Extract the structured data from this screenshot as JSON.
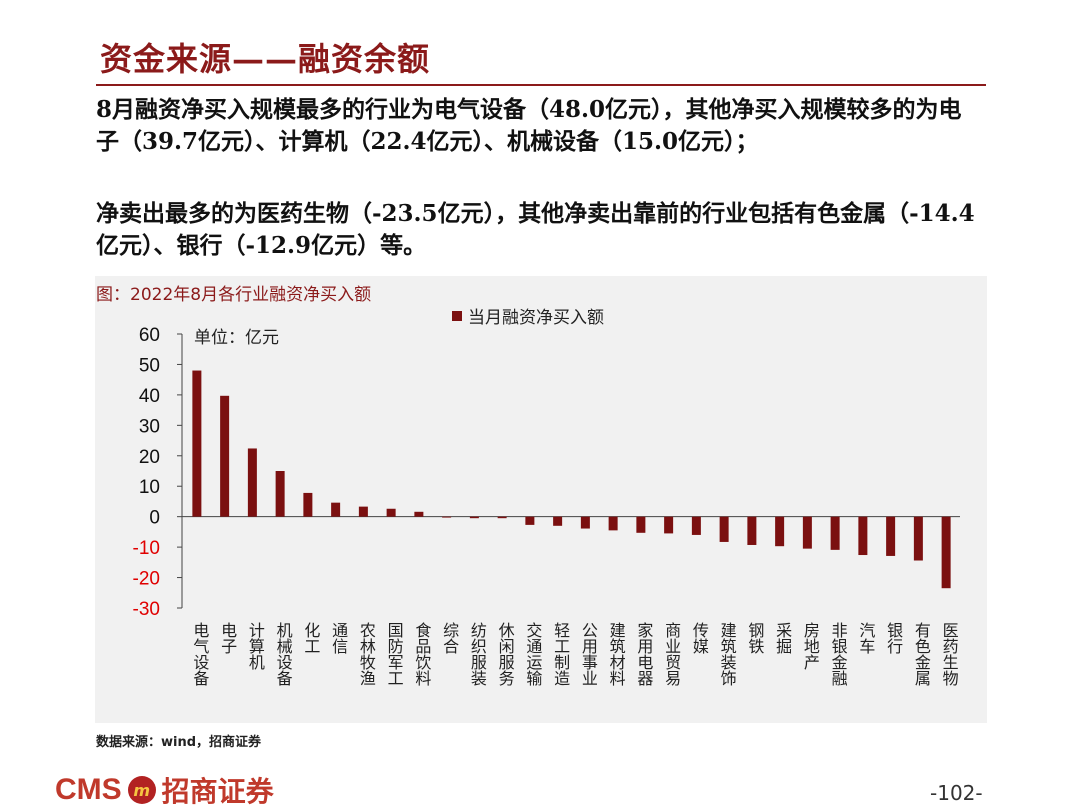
{
  "header": {
    "title": "资金来源——融资余额"
  },
  "paragraphs": [
    "8月融资净买入规模最多的行业为电气设备（48.0亿元），其他净买入规模较多的为电子（39.7亿元）、计算机（22.4亿元）、机械设备（15.0亿元）；",
    "净卖出最多的为医药生物（-23.5亿元），其他净卖出靠前的行业包括有色金属（-14.4亿元）、银行（-12.9亿元）等。"
  ],
  "figure": {
    "label": "图：2022年8月各行业融资净买入额",
    "unit_label": "单位：亿元"
  },
  "chart_data": {
    "type": "bar",
    "title": "",
    "legend_position": "top",
    "series": [
      {
        "name": "当月融资净买入额",
        "color": "#7b1010"
      }
    ],
    "categories": [
      "电气设备",
      "电子",
      "计算机",
      "机械设备",
      "化工",
      "通信",
      "农林牧渔",
      "国防军工",
      "食品饮料",
      "综合",
      "纺织服装",
      "休闲服务",
      "交通运输",
      "轻工制造",
      "公用事业",
      "建筑材料",
      "家用电器",
      "商业贸易",
      "传媒",
      "建筑装饰",
      "钢铁",
      "采掘",
      "房地产",
      "非银金融",
      "汽车",
      "银行",
      "有色金属",
      "医药生物"
    ],
    "values": [
      48.0,
      39.7,
      22.4,
      15.0,
      7.8,
      4.6,
      3.3,
      2.6,
      1.6,
      -0.3,
      -0.5,
      -0.5,
      -2.7,
      -3.0,
      -3.9,
      -4.5,
      -5.3,
      -5.5,
      -6.0,
      -8.3,
      -9.3,
      -9.7,
      -10.5,
      -10.9,
      -12.6,
      -12.9,
      -14.4,
      -23.5
    ],
    "yticks": [
      60,
      50,
      40,
      30,
      20,
      10,
      0,
      -10,
      -20,
      -30
    ],
    "ylim": [
      -30,
      60
    ],
    "grid": false
  },
  "footer": {
    "source": "数据来源：wind，招商证券",
    "brand_cms": "CMS",
    "brand_badge": "m",
    "brand_name": "招商证券",
    "page": "-102-"
  }
}
